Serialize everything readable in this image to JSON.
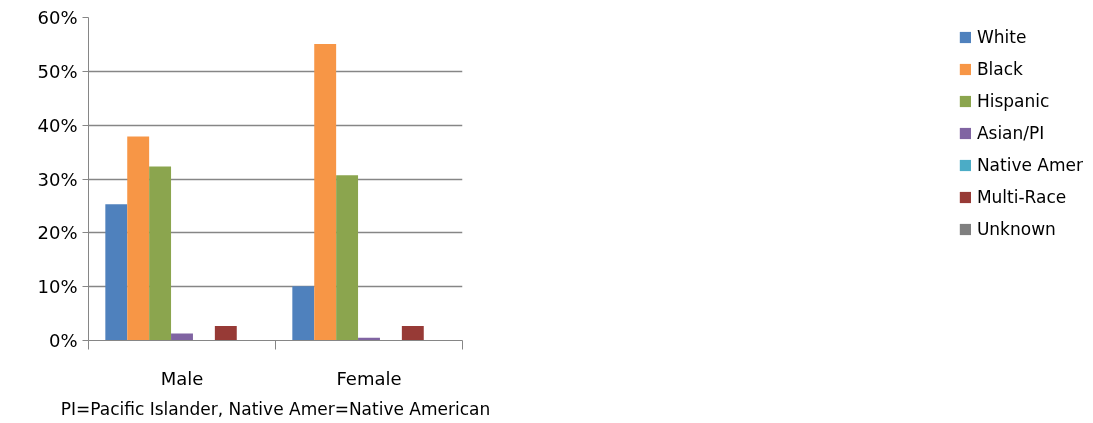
{
  "chart_data": {
    "type": "bar",
    "categories": [
      "Male",
      "Female"
    ],
    "series": [
      {
        "name": "White",
        "color": "#4f81bd",
        "values": [
          25.3,
          10.1
        ]
      },
      {
        "name": "Black",
        "color": "#f79646",
        "values": [
          37.9,
          55.1
        ]
      },
      {
        "name": "Hispanic",
        "color": "#8ba54e",
        "values": [
          32.3,
          30.7
        ]
      },
      {
        "name": "Asian/PI",
        "color": "#8064a2",
        "values": [
          1.3,
          0.5
        ]
      },
      {
        "name": "Native Amer",
        "color": "#4bacc6",
        "values": [
          0,
          0
        ]
      },
      {
        "name": "Multi-Race",
        "color": "#973a36",
        "values": [
          2.7,
          2.7
        ]
      },
      {
        "name": "Unknown",
        "color": "#7f7f7f",
        "values": [
          0,
          0
        ]
      }
    ],
    "ylim": [
      0,
      60
    ],
    "yticks": [
      {
        "value": 0,
        "label": "0%"
      },
      {
        "value": 10,
        "label": "10%"
      },
      {
        "value": 20,
        "label": "20%"
      },
      {
        "value": 30,
        "label": "30%"
      },
      {
        "value": 40,
        "label": "40%"
      },
      {
        "value": 50,
        "label": "50%"
      },
      {
        "value": 60,
        "label": "60%"
      }
    ],
    "grid": "y",
    "legend": "right",
    "annotations": [
      "PI=Pacific Islander, Native Amer=Native American"
    ]
  }
}
